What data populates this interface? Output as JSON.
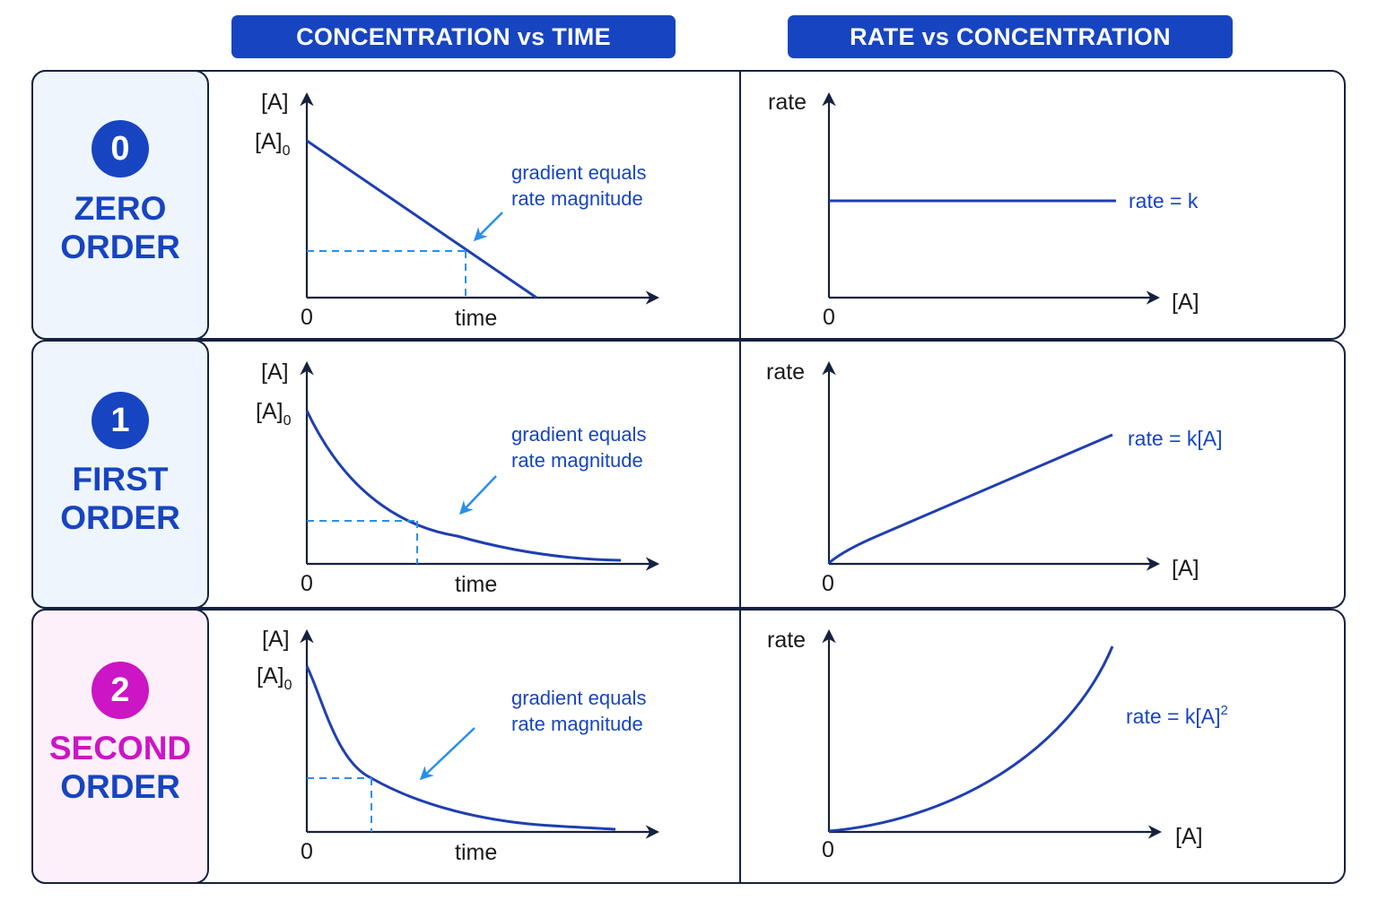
{
  "headers": {
    "left": "CONCENTRATION vs TIME",
    "right": "RATE vs CONCENTRATION"
  },
  "colors": {
    "header_bg": "#1744c0",
    "curve": "#1f3fb0",
    "dashed": "#2a8fe8",
    "zero_first_label": "#1744c0",
    "second_label": "#cc15c4",
    "zero_first_bg": "#eef5fd",
    "second_bg": "#fdf0fb"
  },
  "rows": [
    {
      "badge": "0",
      "name_line1": "ZERO",
      "name_line2": "ORDER",
      "conc_time": {
        "y_label": "[A]",
        "y0_label": "[A]",
        "y0_sub": "0",
        "x_label": "time",
        "origin": "0",
        "note_line1": "gradient equals",
        "note_line2": "rate magnitude"
      },
      "rate_conc": {
        "y_label": "rate",
        "x_label": "[A]",
        "origin": "0",
        "formula": "rate = k",
        "formula_sup": ""
      }
    },
    {
      "badge": "1",
      "name_line1": "FIRST",
      "name_line2": "ORDER",
      "conc_time": {
        "y_label": "[A]",
        "y0_label": "[A]",
        "y0_sub": "0",
        "x_label": "time",
        "origin": "0",
        "note_line1": "gradient equals",
        "note_line2": "rate magnitude"
      },
      "rate_conc": {
        "y_label": "rate",
        "x_label": "[A]",
        "origin": "0",
        "formula": "rate = k[A]",
        "formula_sup": ""
      }
    },
    {
      "badge": "2",
      "name_line1": "SECOND",
      "name_line2": "ORDER",
      "conc_time": {
        "y_label": "[A]",
        "y0_label": "[A]",
        "y0_sub": "0",
        "x_label": "time",
        "origin": "0",
        "note_line1": "gradient equals",
        "note_line2": "rate magnitude"
      },
      "rate_conc": {
        "y_label": "rate",
        "x_label": "[A]",
        "origin": "0",
        "formula": "rate = k[A]",
        "formula_sup": "2"
      }
    }
  ]
}
